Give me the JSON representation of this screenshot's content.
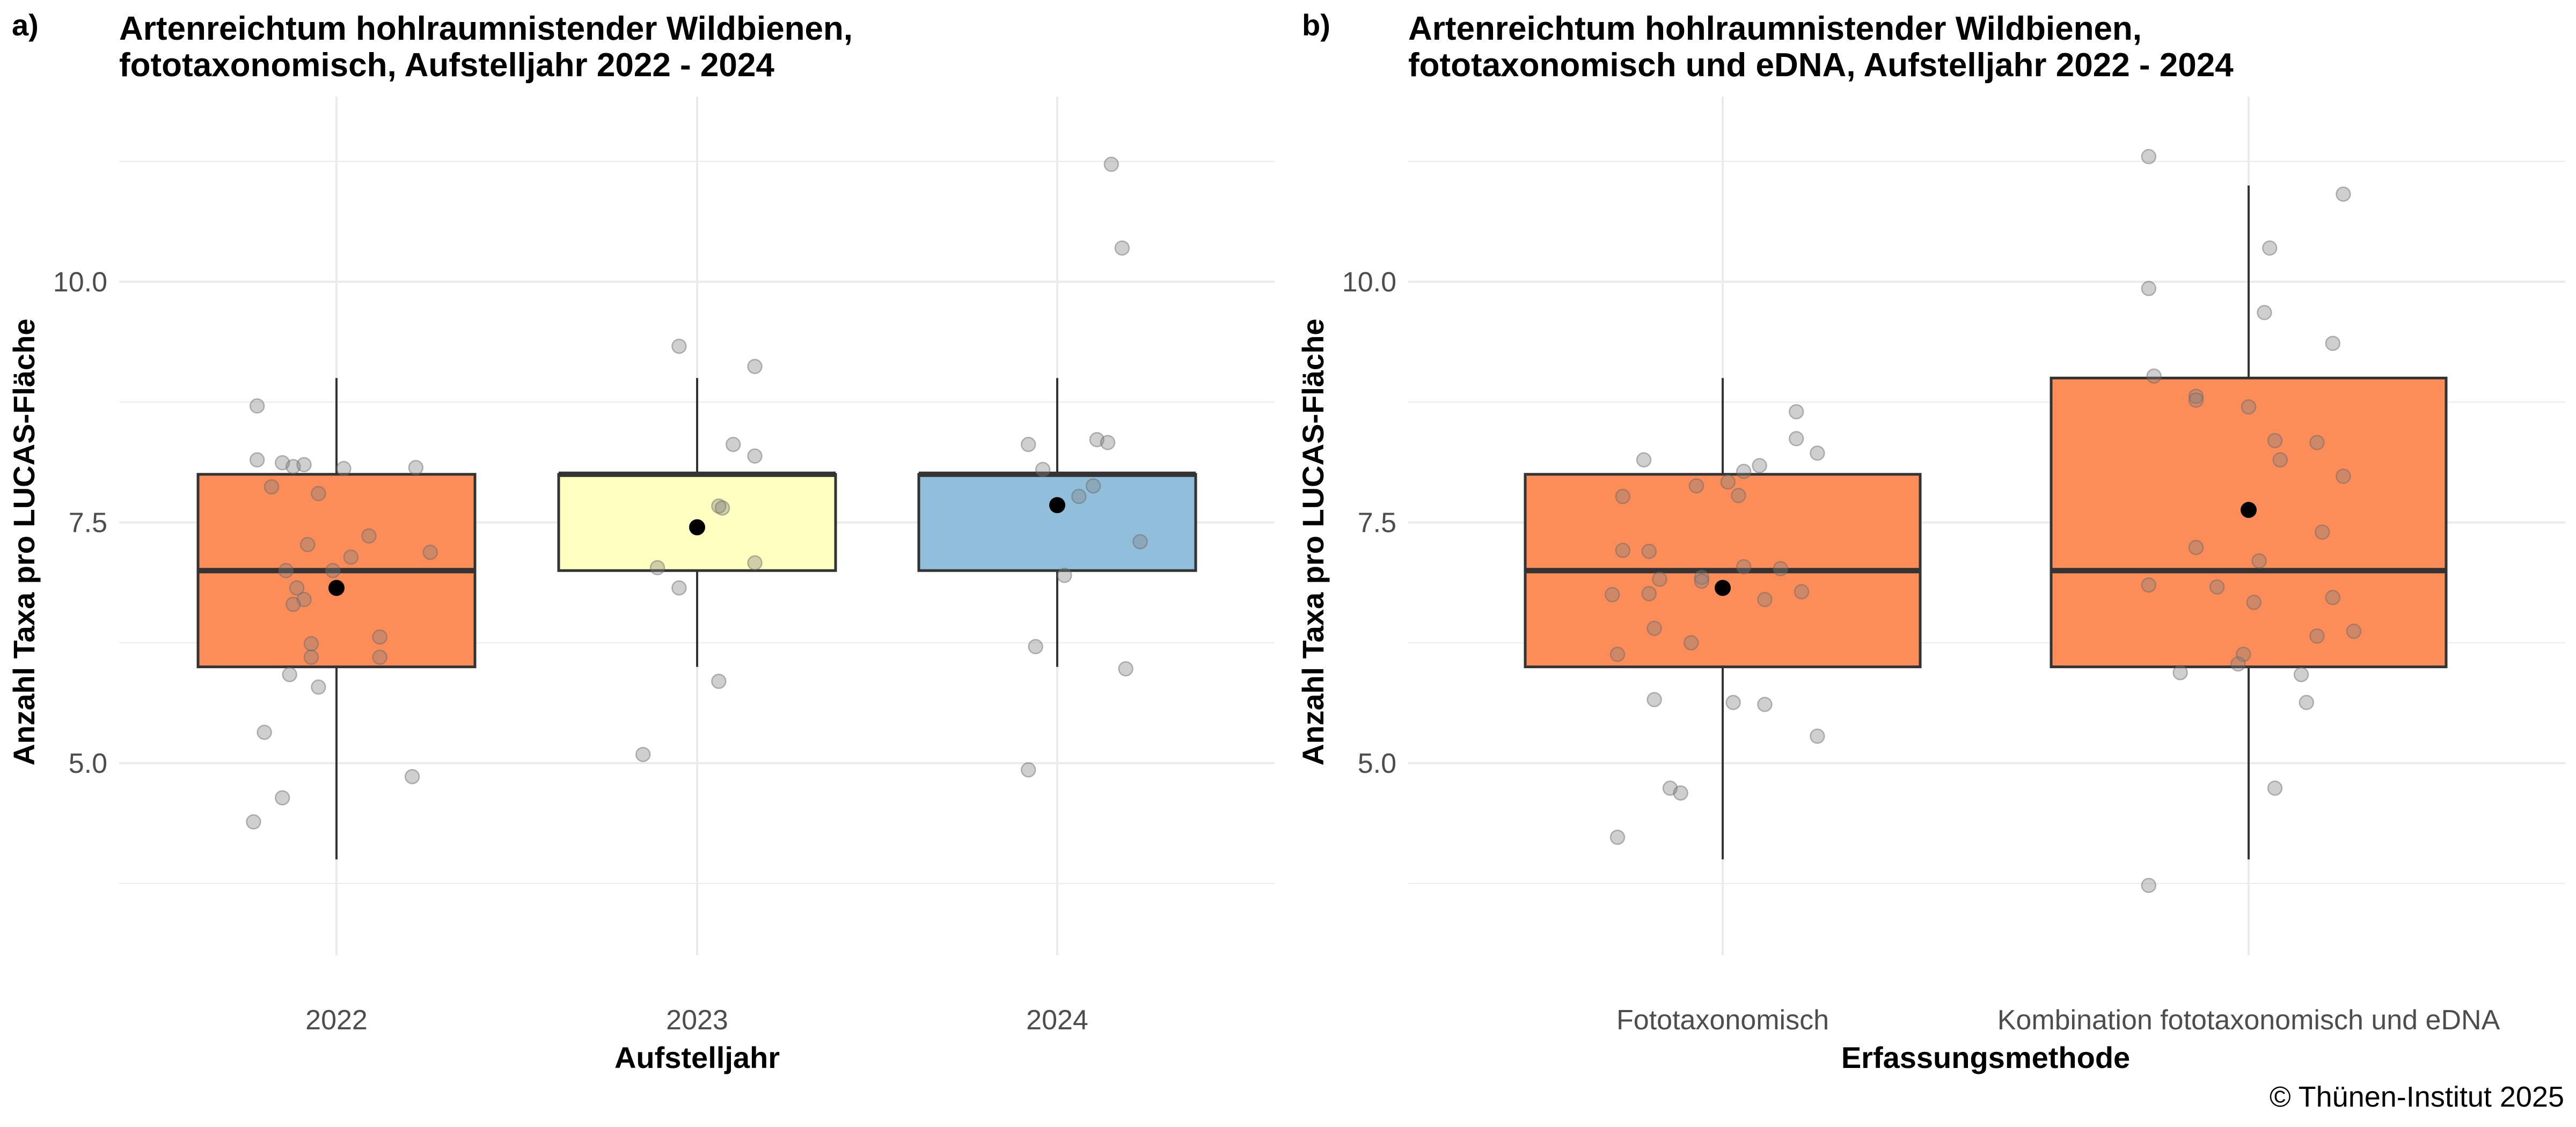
{
  "caption": "© Thünen-Institut 2025",
  "chart_data": [
    {
      "type": "box",
      "panel_label": "a)",
      "title_lines": [
        "Artenreichtum hohlraumnistender Wildbienen,",
        "fototaxonomisch, Aufstelljahr 2022 - 2024"
      ],
      "xlabel": "Aufstelljahr",
      "ylabel": "Anzahl Taxa pro LUCAS-Fläche",
      "ylim": [
        3.3,
        11.5
      ],
      "yticks": [
        5.0,
        7.5,
        10.0
      ],
      "ytick_labels": [
        "5.0",
        "7.5",
        "10.0"
      ],
      "yminor": [
        3.75,
        6.25,
        8.75,
        11.25
      ],
      "grid": true,
      "categories": [
        "2022",
        "2023",
        "2024"
      ],
      "boxes": [
        {
          "category": "2022",
          "fill": "#fc8d59",
          "whisker_low": 4,
          "q1": 6,
          "median": 7,
          "q3": 8,
          "whisker_high": 9,
          "mean": 6.82
        },
        {
          "category": "2023",
          "fill": "#ffffbf",
          "whisker_low": 6,
          "q1": 7,
          "median": 8,
          "q3": 8,
          "whisker_high": 9,
          "mean": 7.45
        },
        {
          "category": "2024",
          "fill": "#91bfdb",
          "whisker_low": 6,
          "q1": 7,
          "median": 8,
          "q3": 8,
          "whisker_high": 9,
          "mean": 7.68
        }
      ],
      "points": [
        {
          "category": "2022",
          "values": [
            8.71,
            8.15,
            8.12,
            8.08,
            8.1,
            8.06,
            8.07,
            7.87,
            7.8,
            7.36,
            7.27,
            7.19,
            7.14,
            7.0,
            7.0,
            6.82,
            6.7,
            6.65,
            6.31,
            6.24,
            6.1,
            6.1,
            5.92,
            5.79,
            5.32,
            4.86,
            4.64,
            4.39
          ],
          "jitter": [
            -0.22,
            -0.22,
            -0.15,
            -0.12,
            -0.09,
            0.02,
            0.22,
            -0.18,
            -0.05,
            0.09,
            -0.08,
            0.26,
            0.04,
            -0.14,
            -0.01,
            -0.11,
            -0.09,
            -0.12,
            0.12,
            -0.07,
            0.12,
            -0.07,
            -0.13,
            -0.05,
            -0.2,
            0.21,
            -0.15,
            -0.23
          ]
        },
        {
          "category": "2023",
          "values": [
            9.33,
            9.12,
            8.31,
            8.19,
            7.67,
            7.65,
            7.08,
            7.03,
            6.82,
            5.85,
            5.09
          ],
          "jitter": [
            -0.05,
            0.16,
            0.1,
            0.16,
            0.06,
            0.07,
            0.16,
            -0.11,
            -0.05,
            0.06,
            -0.15
          ]
        },
        {
          "category": "2024",
          "values": [
            11.22,
            10.35,
            8.36,
            8.33,
            8.31,
            8.05,
            7.88,
            7.77,
            7.3,
            6.95,
            6.21,
            5.98,
            4.93
          ],
          "jitter": [
            0.15,
            0.18,
            0.11,
            0.14,
            -0.08,
            -0.04,
            0.1,
            0.06,
            0.23,
            0.02,
            -0.06,
            0.19,
            -0.08
          ]
        }
      ]
    },
    {
      "type": "box",
      "panel_label": "b)",
      "title_lines": [
        "Artenreichtum hohlraumnistender Wildbienen,",
        "fototaxonomisch und eDNA, Aufstelljahr 2022 - 2024"
      ],
      "xlabel": "Erfassungsmethode",
      "ylabel": "Anzahl Taxa pro LUCAS-Fläche",
      "ylim": [
        3.3,
        11.5
      ],
      "yticks": [
        5.0,
        7.5,
        10.0
      ],
      "ytick_labels": [
        "5.0",
        "7.5",
        "10.0"
      ],
      "yminor": [
        3.75,
        6.25,
        8.75,
        11.25
      ],
      "grid": true,
      "categories": [
        "Fototaxonomisch",
        "Kombination fototaxonomisch und eDNA"
      ],
      "boxes": [
        {
          "category": "Fototaxonomisch",
          "fill": "#fc8d59",
          "whisker_low": 4,
          "q1": 6,
          "median": 7,
          "q3": 8,
          "whisker_high": 9,
          "mean": 6.82
        },
        {
          "category": "Kombination fototaxonomisch und eDNA",
          "fill": "#fc8d59",
          "whisker_low": 4,
          "q1": 6,
          "median": 7,
          "q3": 9,
          "whisker_high": 11,
          "mean": 7.63
        }
      ],
      "points": [
        {
          "category": "Fototaxonomisch",
          "values": [
            8.65,
            8.37,
            8.22,
            8.15,
            8.09,
            8.03,
            7.92,
            7.88,
            7.78,
            7.77,
            7.21,
            7.2,
            7.04,
            7.02,
            6.93,
            6.91,
            6.89,
            6.78,
            6.76,
            6.75,
            6.7,
            6.4,
            6.25,
            6.13,
            5.66,
            5.63,
            5.61,
            5.28,
            4.74,
            4.69,
            4.23
          ],
          "jitter": [
            0.14,
            0.14,
            0.18,
            -0.15,
            0.07,
            0.04,
            0.01,
            -0.05,
            0.03,
            -0.19,
            -0.19,
            -0.14,
            0.04,
            0.11,
            -0.04,
            -0.12,
            -0.04,
            0.15,
            -0.14,
            -0.21,
            0.08,
            -0.13,
            -0.06,
            -0.2,
            -0.13,
            0.02,
            0.08,
            0.18,
            -0.1,
            -0.08,
            -0.2
          ]
        },
        {
          "category": "Kombination fototaxonomisch und eDNA",
          "values": [
            11.3,
            10.91,
            10.35,
            9.93,
            9.68,
            9.36,
            9.02,
            8.81,
            8.77,
            8.7,
            8.35,
            8.33,
            8.15,
            7.98,
            7.4,
            7.24,
            7.1,
            6.85,
            6.83,
            6.72,
            6.67,
            6.37,
            6.32,
            6.13,
            6.03,
            5.94,
            5.92,
            5.63,
            4.74,
            3.73
          ],
          "jitter": [
            -0.19,
            0.18,
            0.04,
            -0.19,
            0.03,
            0.16,
            -0.18,
            -0.1,
            -0.1,
            0.0,
            0.05,
            0.13,
            0.06,
            0.18,
            0.14,
            -0.1,
            0.02,
            -0.19,
            -0.06,
            0.16,
            0.01,
            0.2,
            0.13,
            -0.01,
            -0.02,
            -0.13,
            0.1,
            0.11,
            0.05,
            -0.19
          ]
        }
      ]
    }
  ]
}
